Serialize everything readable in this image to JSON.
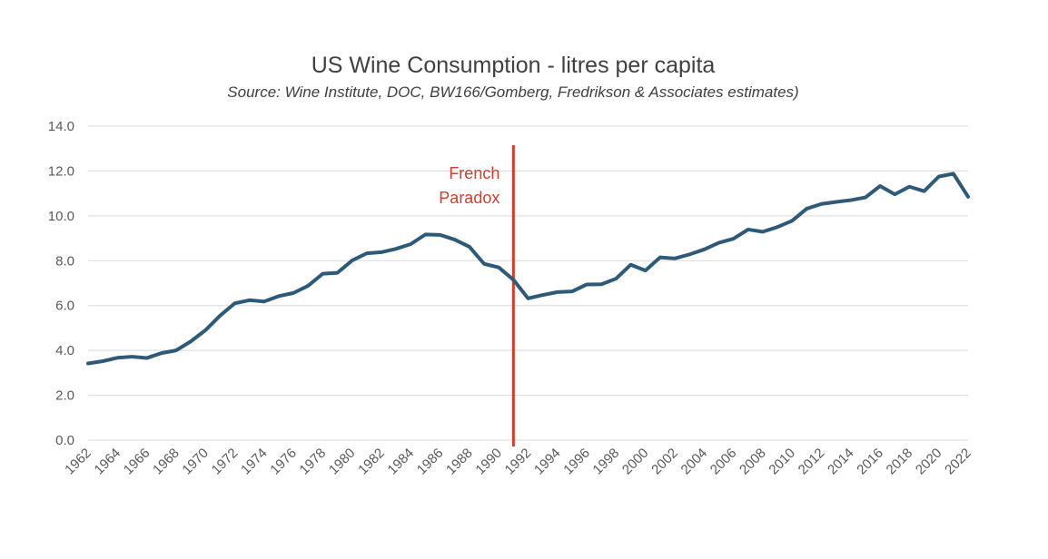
{
  "chart_data": {
    "type": "line",
    "title": "US Wine Consumption - litres per capita",
    "subtitle": "Source: Wine Institute, DOC, BW166/Gomberg, Fredrikson & Associates estimates)",
    "xlabel": "",
    "ylabel": "",
    "ylim": [
      0,
      14
    ],
    "yticks": [
      "0.0",
      "2.0",
      "4.0",
      "6.0",
      "8.0",
      "10.0",
      "12.0",
      "14.0"
    ],
    "grid": true,
    "x": [
      1962,
      1963,
      1964,
      1965,
      1966,
      1967,
      1968,
      1969,
      1970,
      1971,
      1972,
      1973,
      1974,
      1975,
      1976,
      1977,
      1978,
      1979,
      1980,
      1981,
      1982,
      1983,
      1984,
      1985,
      1986,
      1987,
      1988,
      1989,
      1990,
      1991,
      1992,
      1993,
      1994,
      1995,
      1996,
      1997,
      1998,
      1999,
      2000,
      2001,
      2002,
      2003,
      2004,
      2005,
      2006,
      2007,
      2008,
      2009,
      2010,
      2011,
      2012,
      2013,
      2014,
      2015,
      2016,
      2017,
      2018,
      2019,
      2020,
      2021,
      2022
    ],
    "xticks": [
      "1962",
      "1964",
      "1966",
      "1968",
      "1970",
      "1972",
      "1974",
      "1976",
      "1978",
      "1980",
      "1982",
      "1984",
      "1986",
      "1988",
      "1990",
      "1992",
      "1994",
      "1996",
      "1998",
      "2000",
      "2002",
      "2004",
      "2006",
      "2008",
      "2010",
      "2012",
      "2014",
      "2016",
      "2018",
      "2020",
      "2022"
    ],
    "series": [
      {
        "values": [
          3.42,
          3.52,
          3.67,
          3.72,
          3.66,
          3.88,
          4.0,
          4.4,
          4.9,
          5.55,
          6.1,
          6.24,
          6.18,
          6.42,
          6.56,
          6.88,
          7.42,
          7.46,
          8.01,
          8.33,
          8.38,
          8.53,
          8.74,
          9.17,
          9.15,
          8.94,
          8.62,
          7.86,
          7.7,
          7.15,
          6.32,
          6.47,
          6.6,
          6.63,
          6.94,
          6.95,
          7.2,
          7.82,
          7.56,
          8.15,
          8.1,
          8.28,
          8.5,
          8.8,
          8.98,
          9.39,
          9.29,
          9.5,
          9.78,
          10.32,
          10.53,
          10.62,
          10.7,
          10.82,
          11.33,
          10.96,
          11.3,
          11.1,
          11.75,
          11.88,
          10.85
        ],
        "color": "#2e5a7a"
      }
    ],
    "annotations": [
      {
        "x": 1991,
        "lines": [
          "French",
          "Paradox"
        ],
        "color": "#d83b2b"
      }
    ]
  }
}
